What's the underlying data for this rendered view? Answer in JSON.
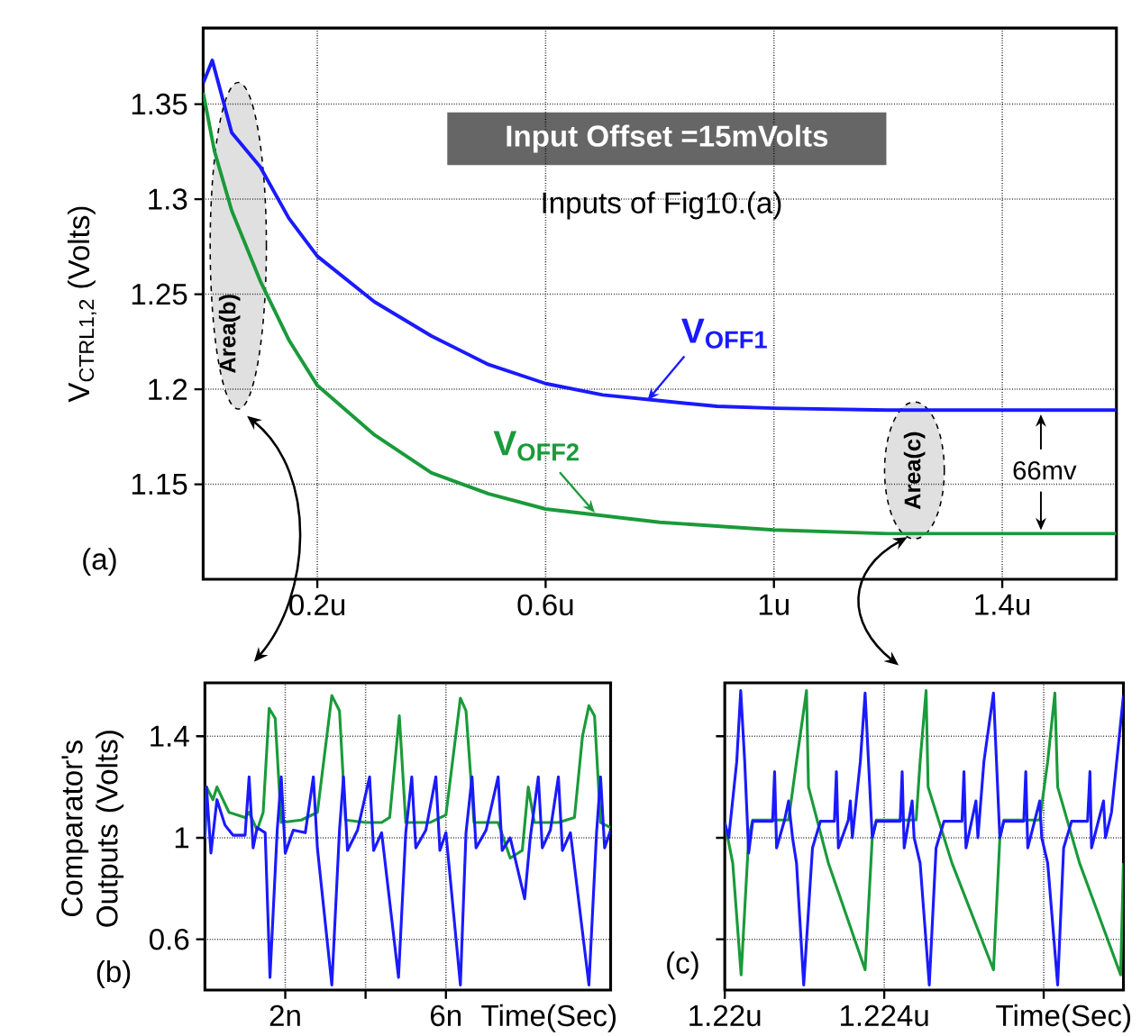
{
  "chart_data": [
    {
      "type": "line",
      "ylabel": "V$_{CTRL1,2}$ (Volts)",
      "xlim": [
        0,
        1.6
      ],
      "ylim": [
        1.1,
        1.39
      ],
      "xticks": [
        {
          "value": 0.2,
          "label": "0.2u"
        },
        {
          "value": 0.6,
          "label": "0.6u"
        },
        {
          "value": 1,
          "label": "1u"
        },
        {
          "value": 1.4,
          "label": "1.4u"
        }
      ],
      "yticks": [
        1.15,
        1.2,
        1.25,
        1.3,
        1.35
      ],
      "grid": true,
      "series": [
        {
          "name": "V$_{OFF1}$",
          "color": "#1a1aff",
          "x": [
            0,
            0.016,
            0.05,
            0.1,
            0.15,
            0.2,
            0.3,
            0.4,
            0.5,
            0.6,
            0.7,
            0.8,
            0.9,
            1.0,
            1.2,
            1.4,
            1.6
          ],
          "values": [
            1.361,
            1.373,
            1.335,
            1.317,
            1.29,
            1.27,
            1.246,
            1.228,
            1.213,
            1.203,
            1.197,
            1.194,
            1.191,
            1.19,
            1.189,
            1.189,
            1.189
          ]
        },
        {
          "name": "V$_{OFF2}$",
          "color": "#1a9a3a",
          "x": [
            0,
            0.02,
            0.05,
            0.1,
            0.15,
            0.2,
            0.3,
            0.4,
            0.5,
            0.6,
            0.8,
            1.0,
            1.2,
            1.6
          ],
          "values": [
            1.356,
            1.325,
            1.294,
            1.257,
            1.226,
            1.202,
            1.176,
            1.156,
            1.145,
            1.137,
            1.13,
            1.126,
            1.124,
            1.124
          ]
        }
      ],
      "annotations": [
        "(a)",
        "Input Offset =15mVolts",
        "Inputs of Fig10.(a)",
        "Area(b)",
        "Area(c)",
        "66mv"
      ]
    },
    {
      "type": "line",
      "ylabel": "Comparator's Outputs (Volts)",
      "xlabel": "Time(Sec)",
      "xlim": [
        0,
        10.1
      ],
      "ylim": [
        0.4,
        1.61
      ],
      "xticks": [
        {
          "value": 2,
          "label": "2n"
        },
        {
          "value": 4,
          "label": null
        },
        {
          "value": 6,
          "label": "6n"
        }
      ],
      "yticks": [
        0.6,
        1,
        1.4
      ],
      "grid": true,
      "series": [
        {
          "color": "#1a9a3a",
          "x": [
            0,
            0.04,
            0.2,
            0.3,
            0.6,
            1.0,
            1.1,
            1.3,
            1.45,
            1.6,
            1.75,
            1.9,
            2.4,
            2.8,
            3.16,
            3.35,
            3.5,
            4.0,
            4.4,
            4.6,
            4.84,
            5.0,
            5.6,
            6.0,
            6.36,
            6.5,
            6.7,
            7.3,
            7.6,
            7.9,
            8.05,
            8.2,
            8.8,
            9.2,
            9.4,
            9.56,
            9.7,
            9.85,
            10.1
          ],
          "values": [
            1.0,
            1.2,
            1.15,
            1.2,
            1.1,
            1.08,
            1.1,
            1.03,
            1.1,
            1.51,
            1.47,
            1.06,
            1.07,
            1.1,
            1.56,
            1.5,
            1.07,
            1.06,
            1.06,
            1.08,
            1.48,
            1.06,
            1.06,
            1.09,
            1.55,
            1.5,
            1.06,
            1.06,
            0.92,
            0.95,
            1.2,
            1.06,
            1.06,
            1.08,
            1.4,
            1.52,
            1.48,
            1.06,
            1.04
          ]
        },
        {
          "color": "#1a1aff",
          "x": [
            0,
            0.04,
            0.15,
            0.3,
            0.5,
            0.7,
            1.0,
            1.1,
            1.2,
            1.3,
            1.5,
            1.62,
            1.8,
            1.9,
            2.0,
            2.2,
            2.5,
            2.7,
            2.8,
            3.16,
            3.35,
            3.45,
            3.55,
            3.8,
            4.1,
            4.2,
            4.4,
            4.82,
            5.0,
            5.15,
            5.25,
            5.5,
            5.75,
            5.85,
            6.0,
            6.36,
            6.5,
            6.65,
            6.75,
            7.0,
            7.3,
            7.4,
            7.6,
            7.96,
            8.1,
            8.3,
            8.4,
            8.6,
            8.8,
            8.9,
            9.1,
            9.56,
            9.75,
            9.85,
            9.95,
            10.1
          ],
          "values": [
            1.0,
            1.2,
            0.94,
            1.15,
            1.05,
            1.01,
            1.01,
            1.24,
            0.96,
            1.04,
            1.02,
            0.45,
            1.03,
            1.24,
            0.94,
            1.03,
            1.02,
            1.24,
            0.96,
            0.42,
            1.03,
            1.24,
            0.95,
            1.03,
            1.24,
            0.95,
            1.02,
            0.45,
            1.02,
            1.24,
            0.96,
            1.03,
            1.24,
            0.95,
            1.02,
            0.42,
            1.02,
            1.24,
            0.96,
            1.03,
            1.24,
            0.95,
            1.0,
            0.76,
            1.0,
            1.24,
            0.96,
            1.03,
            1.24,
            0.95,
            1.02,
            0.42,
            1.02,
            1.24,
            0.96,
            1.03
          ]
        }
      ],
      "annotations": [
        "(b)"
      ]
    },
    {
      "type": "line",
      "xlabel": "Time(Sec)",
      "xlim": [
        1.22,
        1.23
      ],
      "ylim": [
        0.4,
        1.61
      ],
      "xticks": [
        {
          "value": 1.22,
          "label": "1.22u"
        },
        {
          "value": 1.224,
          "label": "1.224u"
        },
        {
          "value": 1.228,
          "label": null
        }
      ],
      "yticks": [
        0.6,
        1,
        1.4
      ],
      "grid": true,
      "tick_labels": "x",
      "series": [
        {
          "color": "#1a9a3a",
          "x": [
            1.22,
            1.2202,
            1.22041,
            1.2206,
            1.2207,
            1.2216,
            1.2218,
            1.22205,
            1.2221,
            1.2226,
            1.22352,
            1.2237,
            1.2238,
            1.2248,
            1.2249,
            1.22505,
            1.2251,
            1.2257,
            1.22674,
            1.2269,
            1.227,
            1.2279,
            1.2281,
            1.22828,
            1.22835,
            1.2289,
            1.22993,
            1.23
          ],
          "values": [
            1.06,
            0.9,
            0.46,
            1.0,
            1.07,
            1.07,
            1.3,
            1.58,
            1.2,
            0.9,
            0.48,
            1.0,
            1.07,
            1.07,
            1.3,
            1.58,
            1.2,
            0.9,
            0.48,
            1.0,
            1.07,
            1.07,
            1.3,
            1.57,
            1.2,
            0.9,
            0.46,
            0.9
          ]
        },
        {
          "color": "#1a1aff",
          "x": [
            1.22,
            1.2201,
            1.2203,
            1.2204,
            1.2205,
            1.2206,
            1.2207,
            1.2212,
            1.22125,
            1.2213,
            1.2215,
            1.2216,
            1.2217,
            1.2218,
            1.22198,
            1.2222,
            1.2224,
            1.22275,
            1.2228,
            1.22285,
            1.2231,
            1.22315,
            1.2232,
            1.2234,
            1.22352,
            1.2237,
            1.2238,
            1.2244,
            1.22445,
            1.2245,
            1.2247,
            1.22475,
            1.2249,
            1.22513,
            1.2253,
            1.2255,
            1.22595,
            1.226,
            1.22605,
            1.2263,
            1.22635,
            1.2265,
            1.22674,
            1.2269,
            1.227,
            1.2275,
            1.22755,
            1.2276,
            1.2279,
            1.22795,
            1.2281,
            1.22835,
            1.2285,
            1.2287,
            1.2291,
            1.22916,
            1.2292,
            1.2295,
            1.22955,
            1.2297,
            1.23
          ],
          "values": [
            1.06,
            1.0,
            1.3,
            1.58,
            1.3,
            0.94,
            1.065,
            1.065,
            1.26,
            0.96,
            1.07,
            1.145,
            1.0,
            0.9,
            0.42,
            0.96,
            1.065,
            1.065,
            1.26,
            0.96,
            1.07,
            1.145,
            1.0,
            1.3,
            1.57,
            1.0,
            1.065,
            1.065,
            1.26,
            0.96,
            1.145,
            1.0,
            0.9,
            0.42,
            0.96,
            1.065,
            1.065,
            1.26,
            0.96,
            1.145,
            1.0,
            1.3,
            1.57,
            1.0,
            1.065,
            1.065,
            1.26,
            0.96,
            1.145,
            1.0,
            0.9,
            0.42,
            0.96,
            1.065,
            1.065,
            1.26,
            0.96,
            1.145,
            1.0,
            1.1,
            1.56
          ]
        }
      ],
      "annotations": [
        "(c)"
      ]
    }
  ]
}
